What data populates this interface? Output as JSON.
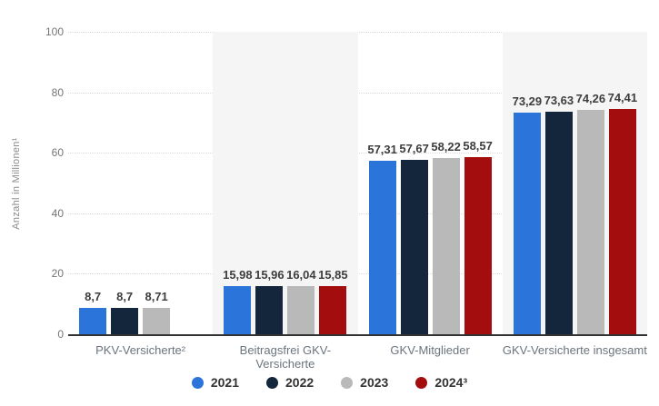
{
  "chart_data": {
    "type": "bar",
    "title": "",
    "ylabel": "Anzahl in Millionen¹",
    "xlabel": "",
    "ylim": [
      0,
      100
    ],
    "yticks": [
      0,
      20,
      40,
      60,
      80,
      100
    ],
    "grid": "horizontal-dotted",
    "legend_position": "bottom",
    "decimal_separator": ",",
    "categories": [
      "PKV-Versicherte²",
      "Beitragsfrei GKV-Versicherte",
      "GKV-Mitglieder",
      "GKV-Versicherte insgesamt"
    ],
    "series": [
      {
        "name": "2021",
        "color": "#2b74d9",
        "values": [
          8.7,
          15.98,
          57.31,
          73.29
        ]
      },
      {
        "name": "2022",
        "color": "#13263b",
        "values": [
          8.7,
          15.96,
          57.67,
          73.63
        ]
      },
      {
        "name": "2023",
        "color": "#b9b9b9",
        "values": [
          8.71,
          16.04,
          58.22,
          74.26
        ]
      },
      {
        "name": "2024³",
        "color": "#a30d0d",
        "values": [
          null,
          15.85,
          58.57,
          74.41
        ]
      }
    ],
    "plot_band_color": "#f5f5f5",
    "plot_band_category_indexes": [
      1,
      3
    ],
    "axis_line_color": "#333333"
  }
}
